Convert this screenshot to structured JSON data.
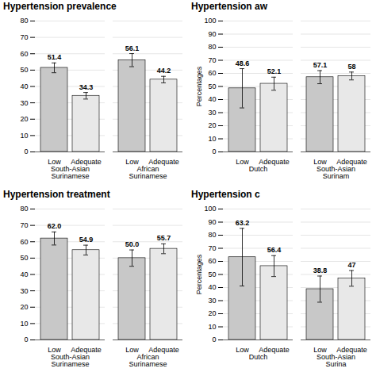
{
  "chart_data": [
    {
      "type": "bar",
      "title": "Hypertension prevalence",
      "categories": [
        "South-Asian Surinamese",
        "African Surinamese"
      ],
      "series": [
        {
          "name": "Low",
          "color": "#c8c8c8",
          "values": [
            51.4,
            56.1
          ],
          "errors": [
            3,
            4
          ]
        },
        {
          "name": "Adequate",
          "color": "#e8e8e8",
          "values": [
            34.3,
            44.2
          ],
          "errors": [
            2,
            2
          ]
        }
      ],
      "ylim": [
        0,
        80
      ],
      "yticks": [
        0,
        10,
        20,
        30,
        40,
        50,
        60,
        70,
        80
      ],
      "grid": true,
      "data_labels": true
    },
    {
      "type": "bar",
      "title": "Hypertension aw",
      "ylabel": "Percentages",
      "categories": [
        "Dutch",
        "South-Asian Surinam"
      ],
      "series": [
        {
          "name": "Low",
          "color": "#c8c8c8",
          "values": [
            48.6,
            57.1
          ],
          "errors": [
            15,
            5
          ]
        },
        {
          "name": "Adequate",
          "color": "#e8e8e8",
          "values": [
            52.1,
            58
          ],
          "errors": [
            5,
            3
          ]
        }
      ],
      "ylim": [
        0,
        100
      ],
      "yticks": [
        0,
        10,
        20,
        30,
        40,
        50,
        60,
        70,
        80,
        90,
        100
      ],
      "grid": true,
      "data_labels": true
    },
    {
      "type": "bar",
      "title": "Hypertension treatment",
      "categories": [
        "South-Asian Surinamese",
        "African Surinamese"
      ],
      "series": [
        {
          "name": "Low",
          "color": "#c8c8c8",
          "values": [
            62.0,
            50.0
          ],
          "value_labels": [
            "62.0",
            "50.0"
          ],
          "errors": [
            4,
            5
          ]
        },
        {
          "name": "Adequate",
          "color": "#e8e8e8",
          "values": [
            54.9,
            55.7
          ],
          "errors": [
            3,
            3
          ]
        }
      ],
      "ylim": [
        0,
        80
      ],
      "yticks": [
        0,
        10,
        20,
        30,
        40,
        50,
        60,
        70,
        80
      ],
      "grid": true,
      "data_labels": true
    },
    {
      "type": "bar",
      "title": "Hypertension c",
      "ylabel": "Percentages",
      "categories": [
        "Dutch",
        "South-Asian Surina"
      ],
      "series": [
        {
          "name": "Low",
          "color": "#c8c8c8",
          "values": [
            63.2,
            38.8
          ],
          "errors": [
            22,
            10
          ]
        },
        {
          "name": "Adequate",
          "color": "#e8e8e8",
          "values": [
            56.4,
            47
          ],
          "errors": [
            8,
            6
          ]
        }
      ],
      "ylim": [
        0,
        100
      ],
      "yticks": [
        0,
        10,
        20,
        30,
        40,
        50,
        60,
        70,
        80,
        90,
        100
      ],
      "grid": true,
      "data_labels": true
    }
  ]
}
